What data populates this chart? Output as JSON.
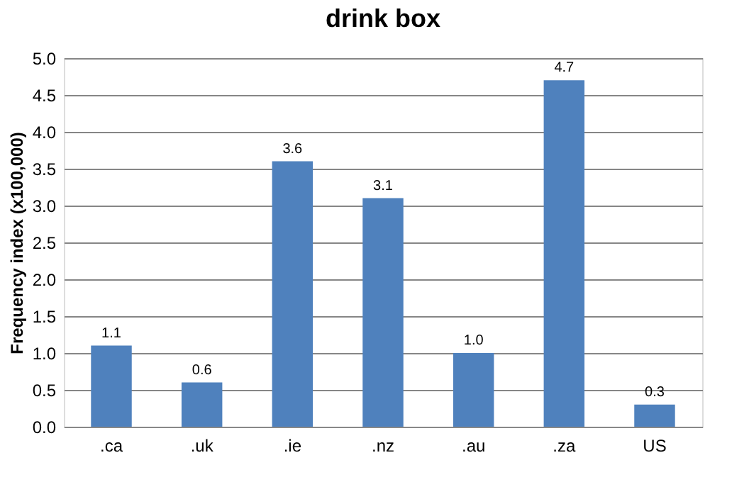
{
  "chart_data": {
    "type": "bar",
    "title": "drink box",
    "ylabel": "Frequency index (x100,000)",
    "categories": [
      ".ca",
      ".uk",
      ".ie",
      ".nz",
      ".au",
      ".za",
      "US"
    ],
    "values": [
      1.1,
      0.6,
      3.6,
      3.1,
      1.0,
      4.7,
      0.3
    ],
    "color": "#4f81bd",
    "ylim": [
      0,
      5
    ],
    "yticks": [
      {
        "value": 0,
        "label": "0.0"
      },
      {
        "value": 0.5,
        "label": "0.5"
      },
      {
        "value": 1,
        "label": "1.0"
      },
      {
        "value": 1.5,
        "label": "1.5"
      },
      {
        "value": 2,
        "label": "2.0"
      },
      {
        "value": 2.5,
        "label": "2.5"
      },
      {
        "value": 3,
        "label": "3.0"
      },
      {
        "value": 3.5,
        "label": "3.5"
      },
      {
        "value": 4,
        "label": "4.0"
      },
      {
        "value": 4.5,
        "label": "4.5"
      },
      {
        "value": 5,
        "label": "5.0"
      }
    ],
    "grid": "y",
    "value_labels": [
      "1.1",
      "0.6",
      "3.6",
      "3.1",
      "1.0",
      "4.7",
      "0.3"
    ]
  }
}
